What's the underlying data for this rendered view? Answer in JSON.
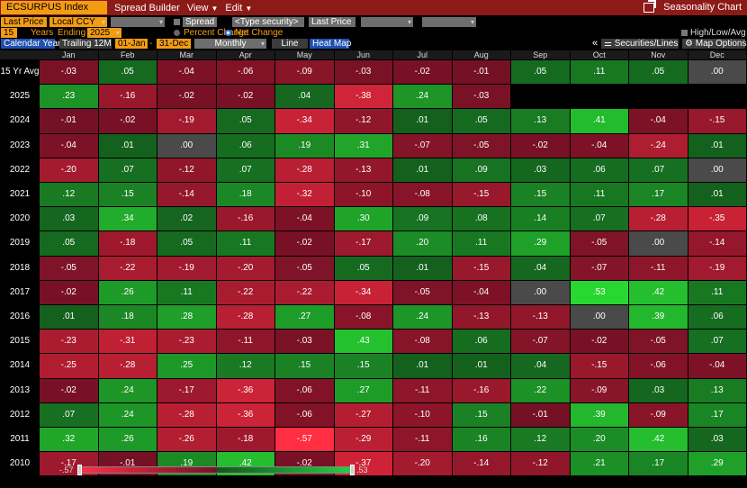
{
  "toolbar": {
    "ticker": "ECSURPUS Index",
    "menus": [
      "Spread Builder",
      "View",
      "Edit"
    ],
    "app_title": "Seasonality Chart"
  },
  "options": {
    "last_price": "Last Price",
    "currency": "Local CCY",
    "spread": "Spread",
    "type_security_placeholder": "<Type security>",
    "last_price_2": "Last Price",
    "years_count": "15",
    "years_label": "Years",
    "ending_label": "Ending",
    "ending_year": "2025",
    "percent_change": "Percent Change",
    "net_change": "Net Change",
    "high_low_avg": "High/Low/Avg",
    "calendar_year": "Calendar Year",
    "trailing": "Trailing 12M",
    "date_from": "01-Jan",
    "date_sep": "-",
    "date_to": "31-Dec",
    "period": "Monthly",
    "line": "Line",
    "heat_map": "Heat Map",
    "collapse": "«",
    "securities_lines": "Securities/Lines",
    "map_options": "Map Options"
  },
  "months": [
    "Jan",
    "Feb",
    "Mar",
    "Apr",
    "May",
    "Jun",
    "Jul",
    "Aug",
    "Sep",
    "Oct",
    "Nov",
    "Dec"
  ],
  "rows": [
    {
      "label": "15 Yr Avg",
      "values": [
        "-.03",
        ".05",
        "-.04",
        "-.06",
        "-.09",
        "-.03",
        "-.02",
        "-.01",
        ".05",
        ".11",
        ".05",
        ".00"
      ]
    },
    {
      "label": "2025",
      "values": [
        ".23",
        "-.16",
        "-.02",
        "-.02",
        ".04",
        "-.38",
        ".24",
        "-.03",
        "",
        "",
        "",
        ""
      ]
    },
    {
      "label": "2024",
      "values": [
        "-.01",
        "-.02",
        "-.19",
        ".05",
        "-.34",
        "-.12",
        ".01",
        ".05",
        ".13",
        ".41",
        "-.04",
        "-.15"
      ]
    },
    {
      "label": "2023",
      "values": [
        "-.04",
        ".01",
        ".00",
        ".06",
        ".19",
        ".31",
        "-.07",
        "-.05",
        "-.02",
        "-.04",
        "-.24",
        ".01"
      ]
    },
    {
      "label": "2022",
      "values": [
        "-.20",
        ".07",
        "-.12",
        ".07",
        "-.28",
        "-.13",
        ".01",
        ".09",
        ".03",
        ".06",
        ".07",
        ".00"
      ]
    },
    {
      "label": "2021",
      "values": [
        ".12",
        ".15",
        "-.14",
        ".18",
        "-.32",
        "-.10",
        "-.08",
        "-.15",
        ".15",
        ".11",
        ".17",
        ".01"
      ]
    },
    {
      "label": "2020",
      "values": [
        ".03",
        ".34",
        ".02",
        "-.16",
        "-.04",
        ".30",
        ".09",
        ".08",
        ".14",
        ".07",
        "-.28",
        "-.35"
      ]
    },
    {
      "label": "2019",
      "values": [
        ".05",
        "-.18",
        ".05",
        ".11",
        "-.02",
        "-.17",
        ".20",
        ".11",
        ".29",
        "-.05",
        ".00",
        "-.14"
      ]
    },
    {
      "label": "2018",
      "values": [
        "-.05",
        "-.22",
        "-.19",
        "-.20",
        "-.05",
        ".05",
        ".01",
        "-.15",
        ".04",
        "-.07",
        "-.11",
        "-.19"
      ]
    },
    {
      "label": "2017",
      "values": [
        "-.02",
        ".26",
        ".11",
        "-.22",
        "-.22",
        "-.34",
        "-.05",
        "-.04",
        ".00",
        ".53",
        ".42",
        ".11"
      ]
    },
    {
      "label": "2016",
      "values": [
        ".01",
        ".18",
        ".28",
        "-.28",
        ".27",
        "-.08",
        ".24",
        "-.13",
        "-.13",
        ".00",
        ".39",
        ".06"
      ]
    },
    {
      "label": "2015",
      "values": [
        "-.23",
        "-.31",
        "-.23",
        "-.11",
        "-.03",
        ".43",
        "-.08",
        ".06",
        "-.07",
        "-.02",
        "-.05",
        ".07"
      ]
    },
    {
      "label": "2014",
      "values": [
        "-.25",
        "-.28",
        ".25",
        ".12",
        ".15",
        ".15",
        ".01",
        ".01",
        ".04",
        "-.15",
        "-.06",
        "-.04"
      ]
    },
    {
      "label": "2013",
      "values": [
        "-.02",
        ".24",
        "-.17",
        "-.36",
        "-.06",
        ".27",
        "-.11",
        "-.16",
        ".22",
        "-.09",
        ".03",
        ".13"
      ]
    },
    {
      "label": "2012",
      "values": [
        ".07",
        ".24",
        "-.28",
        "-.36",
        "-.06",
        "-.27",
        "-.10",
        ".15",
        "-.01",
        ".39",
        "-.09",
        ".17"
      ]
    },
    {
      "label": "2011",
      "values": [
        ".32",
        ".26",
        "-.26",
        "-.18",
        "-.57",
        "-.29",
        "-.11",
        ".16",
        ".12",
        ".20",
        ".42",
        ".03"
      ]
    },
    {
      "label": "2010",
      "values": [
        "-.17",
        "-.01",
        ".19",
        ".42",
        "-.02",
        "-.37",
        "-.20",
        "-.14",
        "-.12",
        ".21",
        ".17",
        ".29"
      ]
    }
  ],
  "legend": {
    "min": "-.57",
    "max": ".53"
  },
  "colors": {
    "accent": "#f39c12",
    "title_bar": "#8c1a17",
    "toggle_active": "#1f4fb0",
    "positive": "#22d040",
    "negative": "#ff2e46",
    "neutral": "#4a4a4a"
  }
}
